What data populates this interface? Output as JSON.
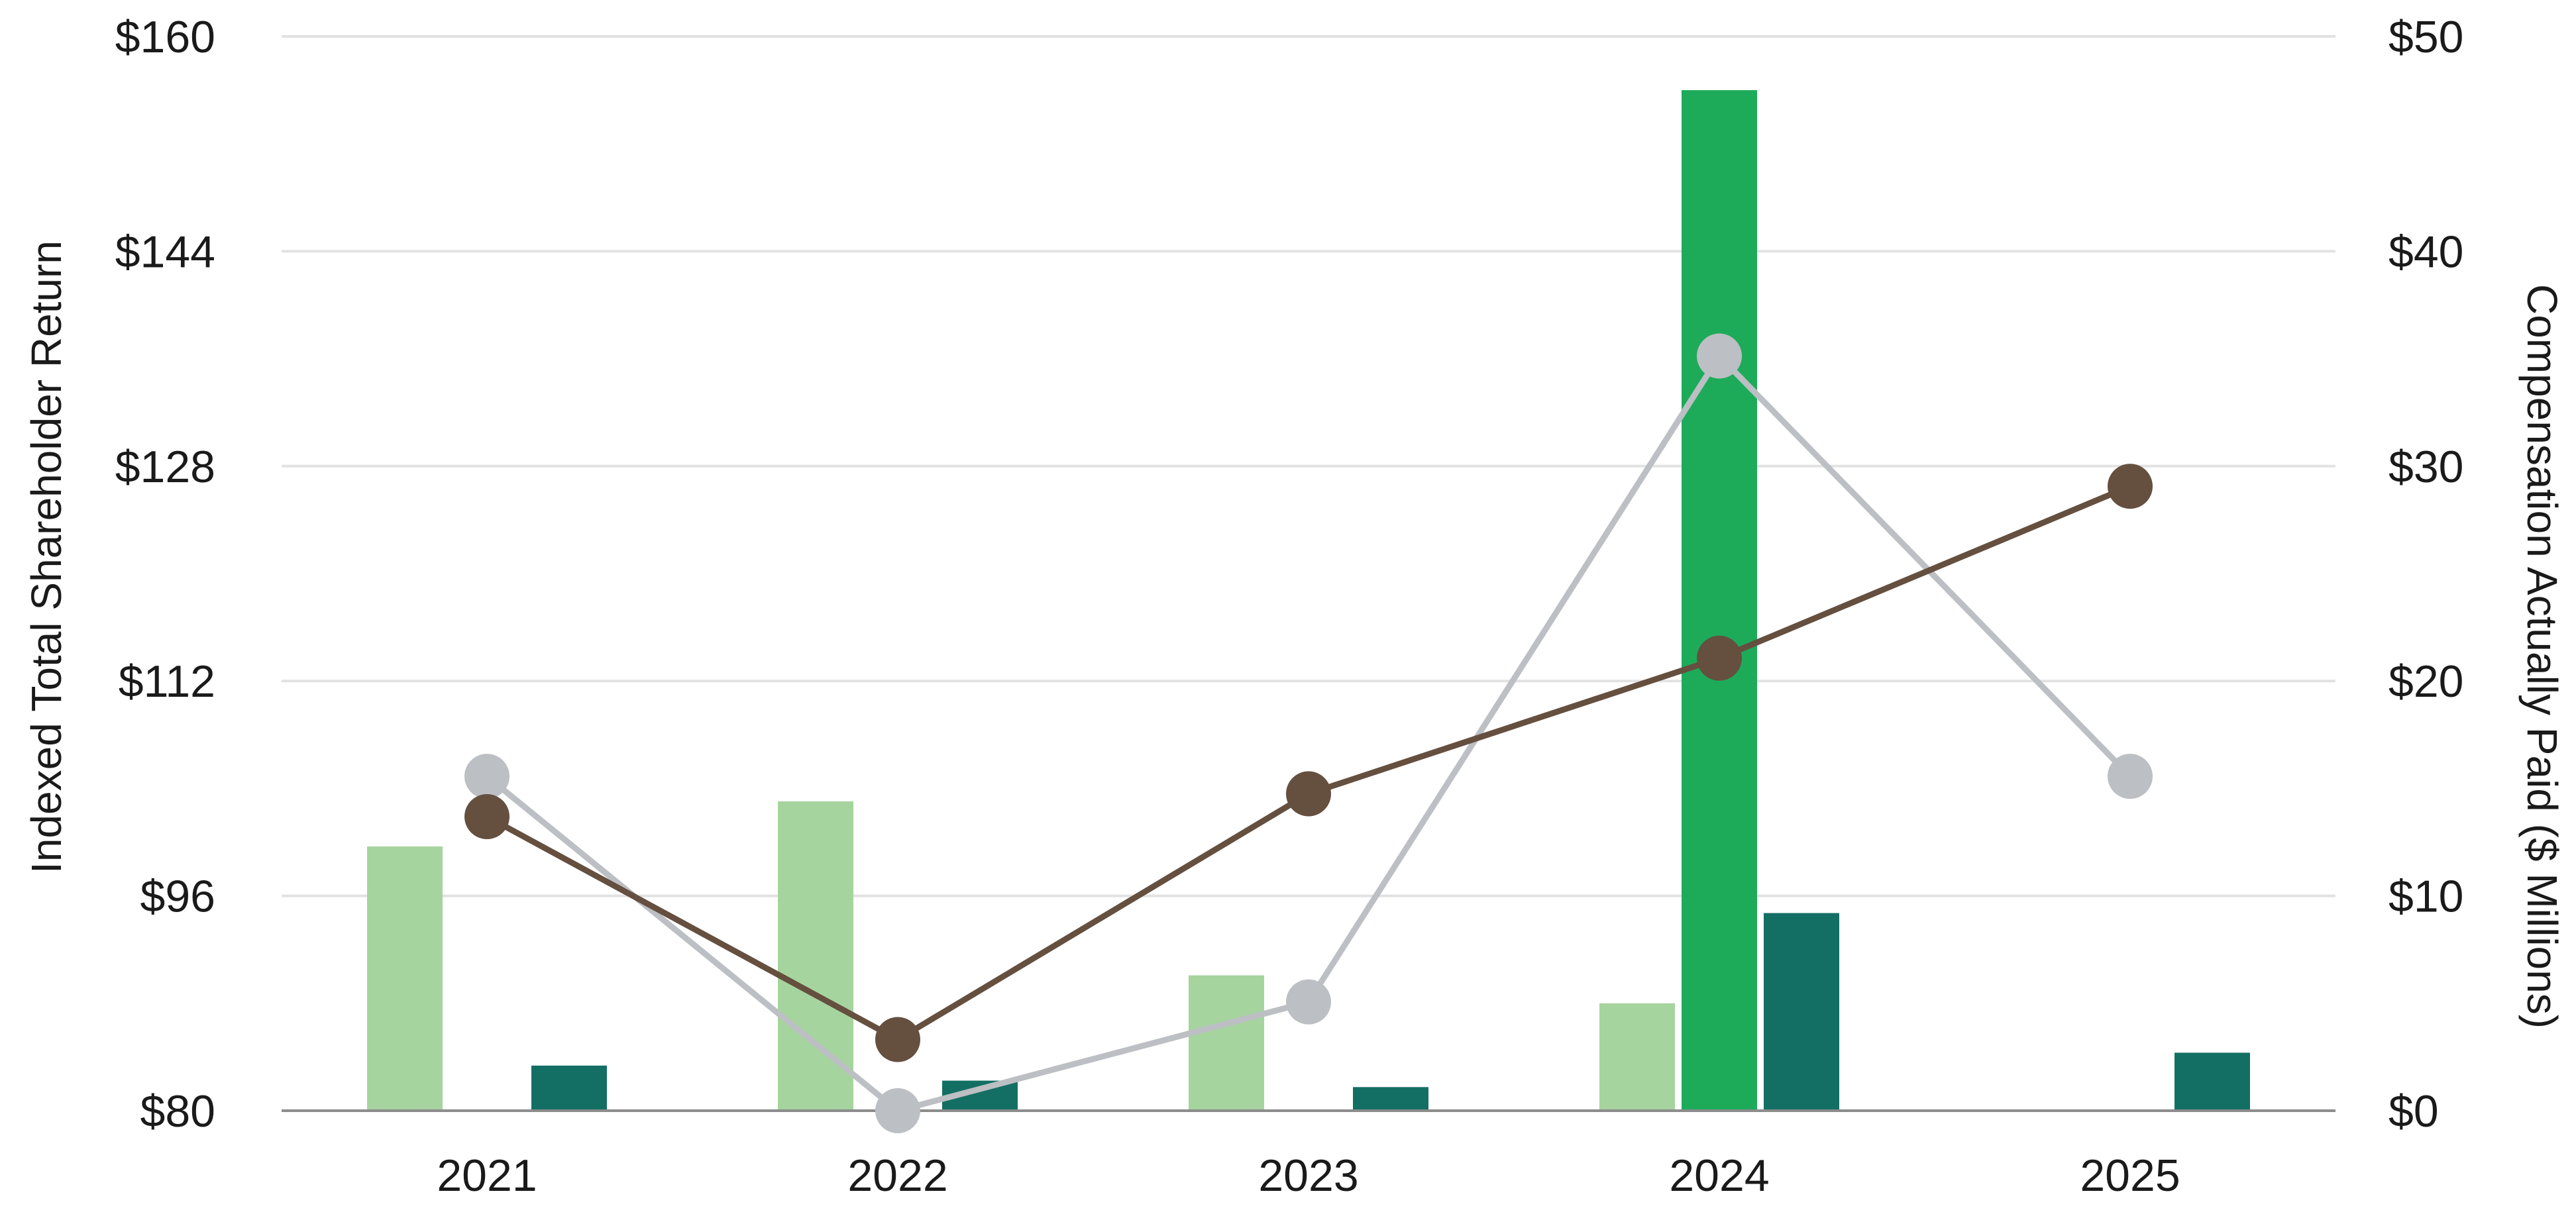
{
  "chart_data": {
    "type": "bar",
    "categories": [
      "2021",
      "2022",
      "2023",
      "2024",
      "2025"
    ],
    "ylabel_left": "Indexed Total Shareholder Return",
    "ylabel_right": "Compensation Actually Paid ($ Millions)",
    "ylim_left": [
      80,
      160
    ],
    "ylim_right": [
      0,
      50
    ],
    "yticks_left": [
      "$80",
      "$96",
      "$112",
      "$128",
      "$144",
      "$160"
    ],
    "yticks_right": [
      "$0",
      "$10",
      "$20",
      "$30",
      "$40",
      "$50"
    ],
    "grid": true,
    "legend": "none",
    "bar_series": [
      {
        "axis": "right",
        "color": "#a6d49e",
        "values": [
          12.3,
          14.4,
          6.3,
          5.0,
          null
        ]
      },
      {
        "axis": "right",
        "color": "#1dab5a",
        "values": [
          null,
          null,
          null,
          47.5,
          null
        ]
      },
      {
        "axis": "right",
        "color": "#136f63",
        "values": [
          2.1,
          1.4,
          1.1,
          9.2,
          2.7
        ]
      }
    ],
    "line_series": [
      {
        "axis": "left",
        "color": "#bcbfc3",
        "values": [
          104.9,
          80.0,
          88.1,
          136.2,
          104.9
        ]
      },
      {
        "axis": "left",
        "color": "#654f3f",
        "values": [
          101.9,
          85.3,
          103.6,
          113.7,
          126.5
        ]
      }
    ]
  }
}
